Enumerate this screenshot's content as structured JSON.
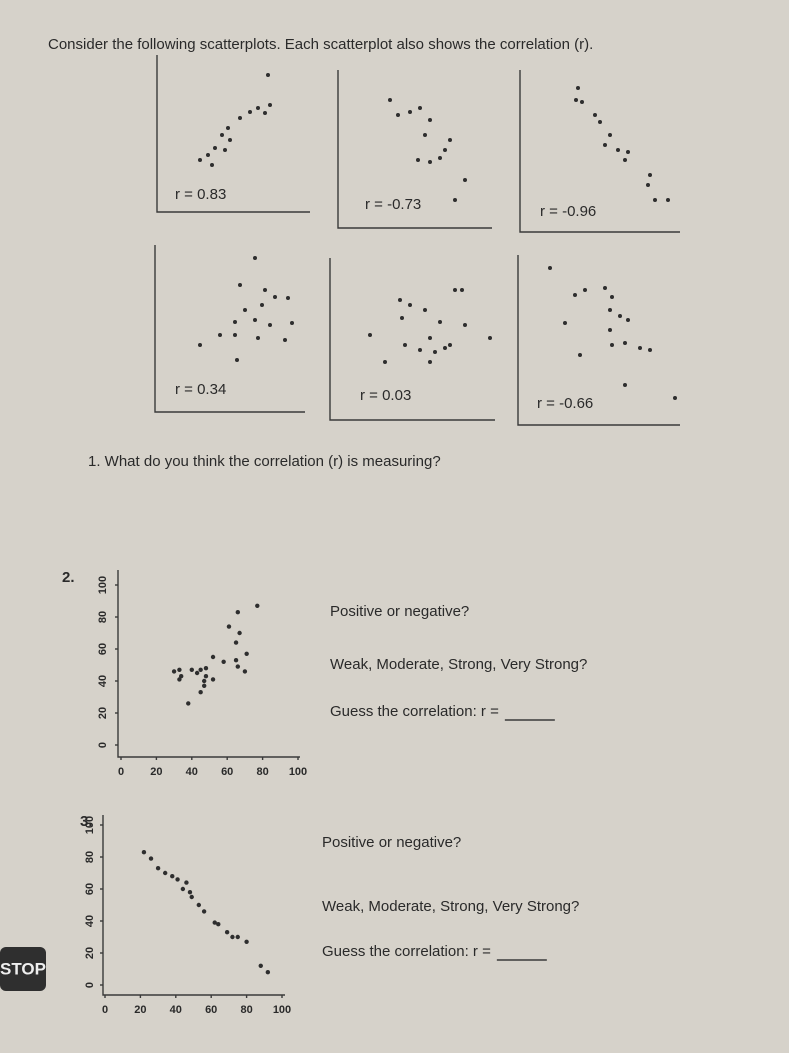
{
  "instructions": "Consider the following scatterplots. Each scatterplot also shows the correlation (r).",
  "small_plots": [
    {
      "label": "r = 0.83"
    },
    {
      "label": "r = -0.73"
    },
    {
      "label": "r = -0.96"
    },
    {
      "label": "r = 0.34"
    },
    {
      "label": "r = 0.03"
    },
    {
      "label": "r = -0.66"
    }
  ],
  "question_1": "1. What do you think the correlation (r) is measuring?",
  "problems": [
    {
      "number": "2.",
      "chart": {
        "type": "scatter",
        "x": [
          30,
          33,
          34,
          33,
          40,
          43,
          45,
          48,
          48,
          47,
          52,
          47,
          45,
          38,
          52,
          58,
          65,
          66,
          70,
          71,
          65,
          67,
          61,
          66,
          77
        ],
        "y": [
          46,
          47,
          43,
          41,
          47,
          45,
          47,
          48,
          43,
          40,
          41,
          37,
          33,
          26,
          55,
          52,
          53,
          49,
          46,
          57,
          64,
          70,
          74,
          83,
          87
        ],
        "xlim": [
          0,
          100
        ],
        "ylim": [
          0,
          100
        ],
        "xticks": [
          0,
          20,
          40,
          60,
          80,
          100
        ],
        "yticks": [
          0,
          20,
          40,
          60,
          80,
          100
        ]
      },
      "prompts": [
        "Positive or negative?",
        "Weak, Moderate, Strong, Very Strong?",
        "Guess the correlation: r ="
      ]
    },
    {
      "number": "3.",
      "chart": {
        "type": "scatter",
        "x": [
          22,
          26,
          30,
          34,
          38,
          41,
          46,
          44,
          48,
          49,
          53,
          56,
          62,
          64,
          69,
          72,
          75,
          80,
          88,
          92
        ],
        "y": [
          83,
          79,
          73,
          70,
          68,
          66,
          64,
          60,
          58,
          55,
          50,
          46,
          39,
          38,
          33,
          30,
          30,
          27,
          12,
          8
        ],
        "xlim": [
          0,
          100
        ],
        "ylim": [
          0,
          100
        ],
        "xticks": [
          0,
          20,
          40,
          60,
          80,
          100
        ],
        "yticks": [
          0,
          20,
          40,
          60,
          80,
          100
        ]
      },
      "prompts": [
        "Positive or negative?",
        "Weak, Moderate, Strong, Very Strong?",
        "Guess the correlation: r ="
      ]
    }
  ],
  "stop_sign": "STOP"
}
